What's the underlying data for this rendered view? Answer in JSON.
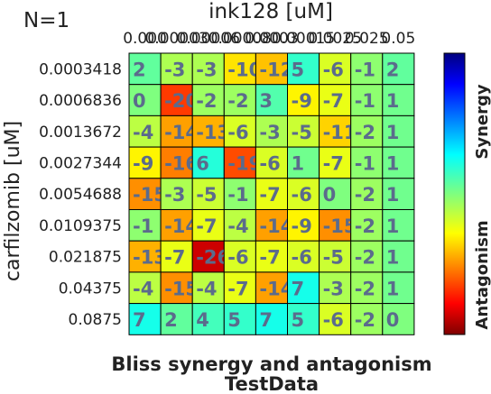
{
  "chart_data": {
    "type": "heatmap",
    "n_label": "N=1",
    "title": "Bliss synergy and antagonism",
    "subtitle": "TestData",
    "xlabel": "ink128 [uM]",
    "ylabel": "carfilzomib [uM]",
    "x_tick_labels": [
      "0.000",
      "0.00003",
      "0.00006",
      "0.00008",
      "0.0003",
      "0.00015",
      "0.0025",
      "0.025",
      "0.05"
    ],
    "y_tick_labels": [
      "0.0003418",
      "0.0006836",
      "0.0013672",
      "0.0027344",
      "0.0054688",
      "0.0109375",
      "0.021875",
      "0.04375",
      "0.0875"
    ],
    "values": [
      [
        2,
        -3,
        -3,
        -10,
        -12,
        5,
        -6,
        -1,
        2
      ],
      [
        0,
        -20,
        -2,
        -2,
        3,
        -9,
        -7,
        -1,
        1
      ],
      [
        -4,
        -14,
        -13,
        -6,
        -3,
        -5,
        -11,
        -2,
        1
      ],
      [
        -9,
        -16,
        6,
        -19,
        -6,
        1,
        -7,
        -1,
        1
      ],
      [
        -15,
        -3,
        -5,
        -1,
        -7,
        -6,
        0,
        -2,
        1
      ],
      [
        -1,
        -14,
        -7,
        -4,
        -14,
        -9,
        -15,
        -2,
        1
      ],
      [
        -13,
        -7,
        -26,
        -6,
        -7,
        -6,
        -5,
        -2,
        1
      ],
      [
        -4,
        -15,
        -4,
        -7,
        -14,
        7,
        -3,
        -2,
        1
      ],
      [
        7,
        2,
        4,
        5,
        7,
        5,
        -6,
        -2,
        0
      ]
    ],
    "colorbar": {
      "range": [
        -30,
        30
      ],
      "top_label": "Synergy",
      "bottom_label": "Antagonism",
      "colormap": "jet_r"
    },
    "grid": true
  }
}
